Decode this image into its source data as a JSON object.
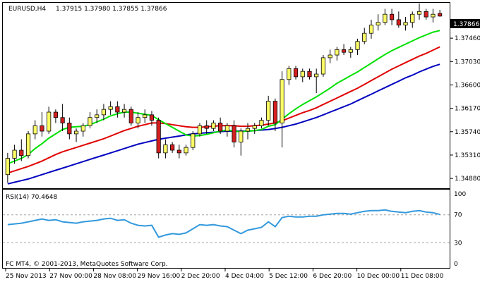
{
  "header": {
    "symbol": "EURUSD,H4",
    "ohlc": "1.37915 1.37980 1.37855 1.37866"
  },
  "price_panel": {
    "current_price_label": "1.37866",
    "y_ticks": [
      "1.37460",
      "1.37030",
      "1.36600",
      "1.36170",
      "1.35740",
      "1.35310",
      "1.34880"
    ]
  },
  "rsi_panel": {
    "label": "RSI(14) 70.4648",
    "y_ticks": [
      "100",
      "70",
      "30",
      "0"
    ]
  },
  "copyright": "FC MT4, © 2001-2013, MetaQuotes Software Corp.",
  "x_ticks": [
    "25 Nov 2013",
    "27 Nov 00:00",
    "28 Nov 08:00",
    "29 Nov 16:00",
    "2 Dec 20:00",
    "4 Dec 04:00",
    "5 Dec 12:00",
    "6 Dec 20:00",
    "10 Dec 00:00",
    "11 Dec 08:00"
  ],
  "colors": {
    "bull": "#ffff66",
    "bear": "#d42020",
    "ma_fast": "#00e000",
    "ma_mid": "#e00000",
    "ma_slow": "#0000c0",
    "rsi": "#3399dd",
    "price_box": "#000000"
  },
  "chart_data": {
    "type": "candlestick",
    "price_ylim": [
      1.347,
      1.3811
    ],
    "rsi_ylim": [
      0,
      100
    ],
    "rsi_levels": [
      70,
      30
    ],
    "candles": [
      [
        1.3495,
        1.3535,
        1.348,
        1.3525
      ],
      [
        1.3525,
        1.355,
        1.3515,
        1.354
      ],
      [
        1.354,
        1.356,
        1.352,
        1.353
      ],
      [
        1.353,
        1.3575,
        1.3525,
        1.357
      ],
      [
        1.357,
        1.3595,
        1.356,
        1.3585
      ],
      [
        1.3585,
        1.361,
        1.3565,
        1.3575
      ],
      [
        1.3575,
        1.362,
        1.357,
        1.361
      ],
      [
        1.361,
        1.3615,
        1.359,
        1.36
      ],
      [
        1.36,
        1.3625,
        1.3575,
        1.359
      ],
      [
        1.359,
        1.36,
        1.356,
        1.357
      ],
      [
        1.357,
        1.358,
        1.3555,
        1.3575
      ],
      [
        1.3575,
        1.359,
        1.3565,
        1.3585
      ],
      [
        1.3585,
        1.361,
        1.358,
        1.36
      ],
      [
        1.36,
        1.3615,
        1.359,
        1.3605
      ],
      [
        1.3605,
        1.3625,
        1.3595,
        1.3615
      ],
      [
        1.3615,
        1.363,
        1.3605,
        1.362
      ],
      [
        1.362,
        1.363,
        1.36,
        1.361
      ],
      [
        1.361,
        1.3625,
        1.36,
        1.3615
      ],
      [
        1.3615,
        1.362,
        1.3585,
        1.359
      ],
      [
        1.359,
        1.361,
        1.358,
        1.36
      ],
      [
        1.36,
        1.3615,
        1.359,
        1.3605
      ],
      [
        1.3605,
        1.3612,
        1.3585,
        1.3595
      ],
      [
        1.3595,
        1.36,
        1.3525,
        1.3535
      ],
      [
        1.3535,
        1.356,
        1.3525,
        1.355
      ],
      [
        1.355,
        1.3555,
        1.3535,
        1.354
      ],
      [
        1.354,
        1.355,
        1.3525,
        1.3535
      ],
      [
        1.3535,
        1.355,
        1.353,
        1.3545
      ],
      [
        1.3545,
        1.3575,
        1.354,
        1.357
      ],
      [
        1.357,
        1.359,
        1.3565,
        1.3585
      ],
      [
        1.3585,
        1.3595,
        1.357,
        1.358
      ],
      [
        1.358,
        1.3595,
        1.3575,
        1.359
      ],
      [
        1.359,
        1.36,
        1.357,
        1.3575
      ],
      [
        1.3575,
        1.359,
        1.3565,
        1.3585
      ],
      [
        1.3585,
        1.3595,
        1.3545,
        1.3555
      ],
      [
        1.3555,
        1.358,
        1.353,
        1.3575
      ],
      [
        1.3575,
        1.359,
        1.356,
        1.358
      ],
      [
        1.358,
        1.359,
        1.357,
        1.3585
      ],
      [
        1.3585,
        1.36,
        1.358,
        1.3595
      ],
      [
        1.3595,
        1.364,
        1.3585,
        1.363
      ],
      [
        1.363,
        1.3635,
        1.3575,
        1.359
      ],
      [
        1.359,
        1.3685,
        1.3545,
        1.367
      ],
      [
        1.367,
        1.3695,
        1.366,
        1.369
      ],
      [
        1.369,
        1.3695,
        1.367,
        1.3675
      ],
      [
        1.3675,
        1.369,
        1.3665,
        1.3685
      ],
      [
        1.3685,
        1.369,
        1.367,
        1.3675
      ],
      [
        1.3675,
        1.369,
        1.3645,
        1.368
      ],
      [
        1.368,
        1.3715,
        1.3675,
        1.371
      ],
      [
        1.371,
        1.3725,
        1.37,
        1.3715
      ],
      [
        1.3715,
        1.373,
        1.3705,
        1.3725
      ],
      [
        1.3725,
        1.3735,
        1.3715,
        1.372
      ],
      [
        1.372,
        1.373,
        1.371,
        1.3725
      ],
      [
        1.3725,
        1.3745,
        1.3715,
        1.374
      ],
      [
        1.374,
        1.3765,
        1.3735,
        1.3755
      ],
      [
        1.3755,
        1.378,
        1.3745,
        1.377
      ],
      [
        1.377,
        1.379,
        1.376,
        1.3775
      ],
      [
        1.3775,
        1.38,
        1.377,
        1.379
      ],
      [
        1.379,
        1.38,
        1.377,
        1.378
      ],
      [
        1.378,
        1.3795,
        1.3765,
        1.377
      ],
      [
        1.377,
        1.3785,
        1.376,
        1.3775
      ],
      [
        1.3775,
        1.3795,
        1.3765,
        1.379
      ],
      [
        1.379,
        1.381,
        1.378,
        1.3795
      ],
      [
        1.3795,
        1.38,
        1.378,
        1.3785
      ],
      [
        1.3785,
        1.38,
        1.3775,
        1.379
      ],
      [
        1.37915,
        1.3798,
        1.37855,
        1.37866
      ]
    ],
    "ma_fast": [
      1.3515,
      1.352,
      1.3525,
      1.3532,
      1.3543,
      1.3552,
      1.3562,
      1.357,
      1.3578,
      1.3582,
      1.3583,
      1.3584,
      1.3587,
      1.3592,
      1.3597,
      1.3603,
      1.3607,
      1.361,
      1.361,
      1.3608,
      1.3606,
      1.3604,
      1.3596,
      1.3589,
      1.3582,
      1.3575,
      1.3568,
      1.3566,
      1.3567,
      1.3569,
      1.3572,
      1.3575,
      1.3577,
      1.3575,
      1.3574,
      1.3575,
      1.3576,
      1.3578,
      1.3584,
      1.3587,
      1.3597,
      1.3607,
      1.3616,
      1.3624,
      1.3631,
      1.3638,
      1.3646,
      1.3654,
      1.3663,
      1.367,
      1.3677,
      1.3684,
      1.3692,
      1.37,
      1.3708,
      1.3716,
      1.3723,
      1.3729,
      1.3735,
      1.3741,
      1.3747,
      1.3752,
      1.3757,
      1.376
    ],
    "ma_mid": [
      1.3498,
      1.3502,
      1.3506,
      1.351,
      1.3515,
      1.352,
      1.3526,
      1.3532,
      1.3537,
      1.3541,
      1.3545,
      1.3549,
      1.3553,
      1.3557,
      1.3561,
      1.3566,
      1.3571,
      1.3576,
      1.358,
      1.3584,
      1.3587,
      1.359,
      1.359,
      1.3589,
      1.3587,
      1.3585,
      1.3583,
      1.3582,
      1.3582,
      1.3583,
      1.3584,
      1.3585,
      1.3585,
      1.3585,
      1.3584,
      1.3584,
      1.3585,
      1.3586,
      1.3588,
      1.359,
      1.3594,
      1.3599,
      1.3604,
      1.3609,
      1.3613,
      1.3618,
      1.3624,
      1.363,
      1.3636,
      1.3642,
      1.3648,
      1.3654,
      1.3661,
      1.3668,
      1.3675,
      1.3682,
      1.3689,
      1.3695,
      1.3701,
      1.3707,
      1.3713,
      1.3718,
      1.3724,
      1.373
    ],
    "ma_slow": [
      1.3478,
      1.3481,
      1.3484,
      1.3487,
      1.3491,
      1.3495,
      1.3499,
      1.3503,
      1.3507,
      1.3511,
      1.3515,
      1.3519,
      1.3523,
      1.3527,
      1.3531,
      1.3535,
      1.3539,
      1.3543,
      1.3547,
      1.3551,
      1.3554,
      1.3557,
      1.356,
      1.3562,
      1.3564,
      1.3566,
      1.3568,
      1.357,
      1.3571,
      1.3572,
      1.3573,
      1.3574,
      1.3575,
      1.3575,
      1.3575,
      1.3575,
      1.3576,
      1.3577,
      1.3578,
      1.358,
      1.3582,
      1.3585,
      1.3588,
      1.3592,
      1.3596,
      1.36,
      1.3605,
      1.361,
      1.3615,
      1.362,
      1.3625,
      1.3631,
      1.3637,
      1.3643,
      1.3649,
      1.3655,
      1.3661,
      1.3667,
      1.3673,
      1.3678,
      1.3684,
      1.3689,
      1.3694,
      1.3698
    ],
    "rsi": [
      56,
      57,
      58,
      60,
      62,
      64,
      62,
      63,
      60,
      59,
      58,
      60,
      61,
      62,
      64,
      65,
      62,
      63,
      58,
      55,
      54,
      55,
      38,
      41,
      43,
      42,
      44,
      50,
      56,
      55,
      56,
      54,
      53,
      48,
      43,
      48,
      50,
      52,
      60,
      53,
      66,
      68,
      67,
      67,
      68,
      68,
      70,
      71,
      72,
      72,
      71,
      73,
      75,
      76,
      76,
      77,
      75,
      74,
      73,
      75,
      76,
      74,
      73,
      70.4648
    ]
  }
}
